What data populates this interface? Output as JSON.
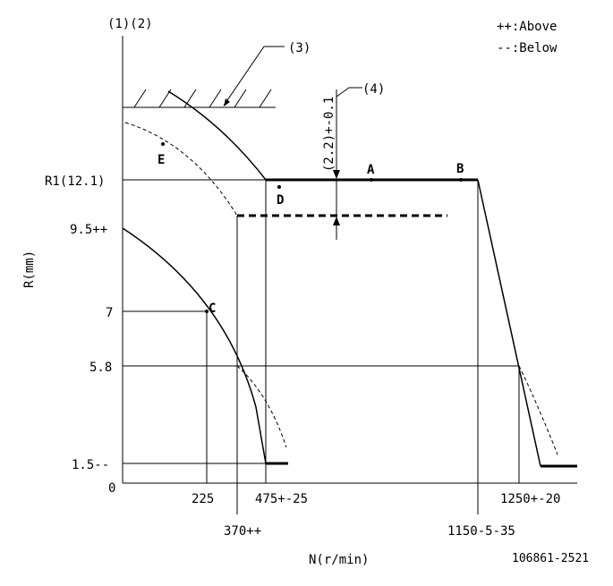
{
  "header": {
    "axis_id": "(1)(2)",
    "legend_above": "++:Above",
    "legend_below": "--:Below"
  },
  "callouts": {
    "c3": "(3)",
    "c4": "(4)",
    "dim": "(2.2)+-0.1"
  },
  "y_labels": {
    "r1": "R1(12.1)",
    "v95": "9.5++",
    "v7": "7",
    "v58": "5.8",
    "v15": "1.5--",
    "zero": "0"
  },
  "x_labels": {
    "x225": "225",
    "x370": "370++",
    "x475": "475+-25",
    "x1150": "1150-5-35",
    "x1250": "1250+-20"
  },
  "points": {
    "A": "A",
    "B": "B",
    "C": "C",
    "D": "D",
    "E": "E"
  },
  "axis_titles": {
    "y": "R(mm)",
    "x": "N(r/min)"
  },
  "footer": {
    "code": "106861-2521"
  }
}
